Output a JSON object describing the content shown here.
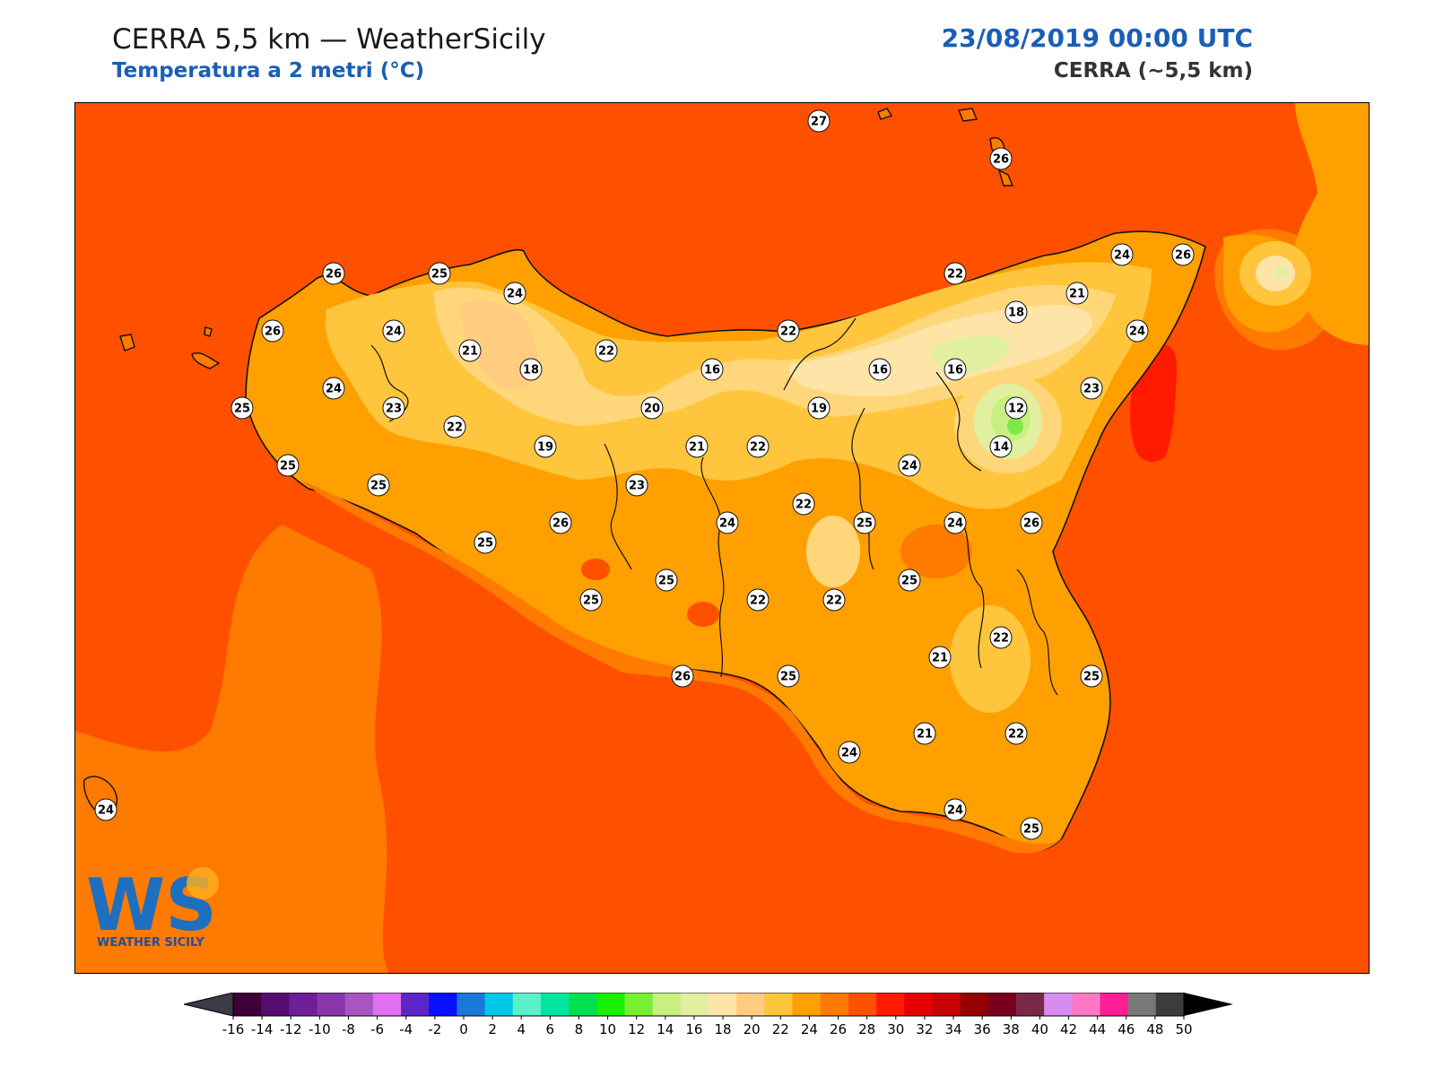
{
  "header": {
    "title": "CERRA 5,5 km — WeatherSicily",
    "subtitle": "Temperatura a 2 metri (°C)",
    "datetime": "23/08/2019 00:00 UTC",
    "model": "CERRA (~5,5 km)"
  },
  "logo": {
    "initials": "WS",
    "text": "WEATHER SICILY"
  },
  "colors": {
    "sea": "#ff5000",
    "land_base": "#ff7a00",
    "c24": "#ffa000",
    "c22": "#ffc53d",
    "c20": "#ffd77a",
    "c18": "#ffe4a8",
    "c14": "#d6e89a",
    "c12": "#7ee84a",
    "c28": "#ff1a00"
  },
  "colorbar": {
    "ticks": [
      "-16",
      "-14",
      "-12",
      "-10",
      "-8",
      "-6",
      "-4",
      "-2",
      "0",
      "2",
      "4",
      "6",
      "8",
      "10",
      "12",
      "14",
      "16",
      "18",
      "20",
      "22",
      "24",
      "26",
      "28",
      "30",
      "32",
      "34",
      "36",
      "38",
      "40",
      "42",
      "44",
      "46",
      "48",
      "50"
    ],
    "colors": [
      "#3f0038",
      "#560b6e",
      "#6e1e96",
      "#8a35aa",
      "#a855c0",
      "#e070f0",
      "#5b25c8",
      "#0a10ff",
      "#1a78d8",
      "#00c8e6",
      "#5cf0c8",
      "#00e6a0",
      "#00e050",
      "#19f000",
      "#78f032",
      "#c8f080",
      "#e0f0a0",
      "#ffe4a8",
      "#ffcc80",
      "#ffc53d",
      "#ffa000",
      "#ff7a00",
      "#ff5000",
      "#ff1a00",
      "#e60000",
      "#c80000",
      "#960000",
      "#78001e",
      "#7a2848",
      "#d88cf0",
      "#ff78c8",
      "#ff1e96",
      "#787878",
      "#3c3c3c"
    ],
    "under_color": "#3c3c46",
    "over_color": "#000000"
  },
  "stations": [
    {
      "v": "27"
    },
    {
      "v": "26"
    },
    {
      "v": "26"
    },
    {
      "v": "25"
    },
    {
      "v": "24"
    },
    {
      "v": "22"
    },
    {
      "v": "24"
    },
    {
      "v": "26"
    },
    {
      "v": "26"
    },
    {
      "v": "24"
    },
    {
      "v": "21"
    },
    {
      "v": "18"
    },
    {
      "v": "22"
    },
    {
      "v": "22"
    },
    {
      "v": "18"
    },
    {
      "v": "21"
    },
    {
      "v": "24"
    },
    {
      "v": "16"
    },
    {
      "v": "16"
    },
    {
      "v": "16"
    },
    {
      "v": "25"
    },
    {
      "v": "24"
    },
    {
      "v": "23"
    },
    {
      "v": "22"
    },
    {
      "v": "20"
    },
    {
      "v": "19"
    },
    {
      "v": "23"
    },
    {
      "v": "12"
    },
    {
      "v": "19"
    },
    {
      "v": "21"
    },
    {
      "v": "22"
    },
    {
      "v": "14"
    },
    {
      "v": "25"
    },
    {
      "v": "25"
    },
    {
      "v": "23"
    },
    {
      "v": "24"
    },
    {
      "v": "26"
    },
    {
      "v": "24"
    },
    {
      "v": "22"
    },
    {
      "v": "25"
    },
    {
      "v": "24"
    },
    {
      "v": "26"
    },
    {
      "v": "25"
    },
    {
      "v": "25"
    },
    {
      "v": "25"
    },
    {
      "v": "25"
    },
    {
      "v": "22"
    },
    {
      "v": "22"
    },
    {
      "v": "22"
    },
    {
      "v": "21"
    },
    {
      "v": "26"
    },
    {
      "v": "25"
    },
    {
      "v": "25"
    },
    {
      "v": "24"
    },
    {
      "v": "21"
    },
    {
      "v": "22"
    },
    {
      "v": "24"
    },
    {
      "v": "25"
    },
    {
      "v": "24"
    }
  ]
}
